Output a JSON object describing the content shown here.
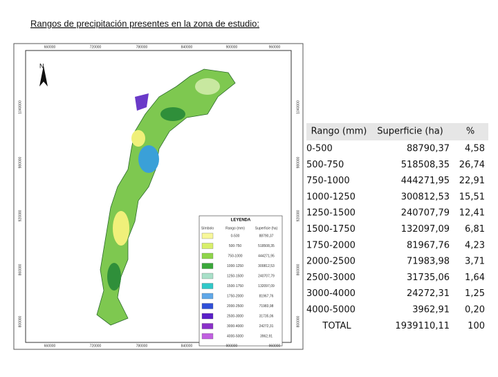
{
  "title": "Rangos de precipitación presentes en la zona de estudio:",
  "map": {
    "north": "N",
    "x_labels": [
      "660000",
      "720000",
      "780000",
      "840000",
      "900000",
      "960000"
    ],
    "y_labels": [
      "1040000",
      "980000",
      "920000",
      "860000",
      "800000"
    ],
    "legend": {
      "title": "LEYENDA",
      "headers": [
        "Símbolo",
        "Rango (mm)",
        "Superficie (ha)"
      ],
      "rows": [
        [
          "0-500",
          "88790,37"
        ],
        [
          "500-750",
          "518508,35"
        ],
        [
          "750-1000",
          "444271,95"
        ],
        [
          "1000-1250",
          "300812,53"
        ],
        [
          "1250-1500",
          "240707,79"
        ],
        [
          "1500-1750",
          "132097,09"
        ],
        [
          "1750-2000",
          "81967,76"
        ],
        [
          "2000-2500",
          "71983,98"
        ],
        [
          "2500-3000",
          "31735,06"
        ],
        [
          "3000-4000",
          "24272,31"
        ],
        [
          "4000-5000",
          "3962,91"
        ]
      ]
    }
  },
  "table": {
    "headers": [
      "Rango (mm)",
      "Superficie (ha)",
      "%"
    ],
    "rows": [
      [
        "0-500",
        "88790,37",
        "4,58"
      ],
      [
        "500-750",
        "518508,35",
        "26,74"
      ],
      [
        "750-1000",
        "444271,95",
        "22,91"
      ],
      [
        "1000-1250",
        "300812,53",
        "15,51"
      ],
      [
        "1250-1500",
        "240707,79",
        "12,41"
      ],
      [
        "1500-1750",
        "132097,09",
        "6,81"
      ],
      [
        "1750-2000",
        "81967,76",
        "4,23"
      ],
      [
        "2000-2500",
        "71983,98",
        "3,71"
      ],
      [
        "2500-3000",
        "31735,06",
        "1,64"
      ],
      [
        "3000-4000",
        "24272,31",
        "1,25"
      ],
      [
        "4000-5000",
        "3962,91",
        "0,20"
      ],
      [
        "TOTAL",
        "1939110,11",
        "100"
      ]
    ]
  }
}
